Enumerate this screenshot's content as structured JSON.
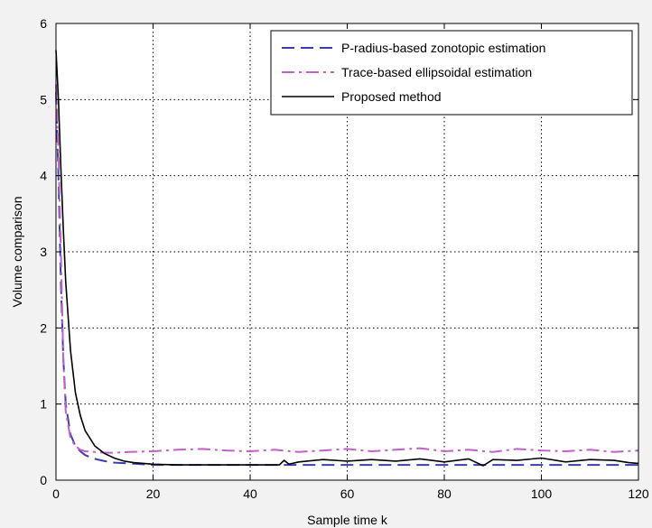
{
  "chart_data": {
    "type": "line",
    "title": "",
    "xlabel": "Sample time k",
    "ylabel": "Volume comparison",
    "xlim": [
      0,
      120
    ],
    "ylim": [
      0,
      6
    ],
    "x_ticks": [
      0,
      20,
      40,
      60,
      80,
      100,
      120
    ],
    "y_ticks": [
      0,
      1,
      2,
      3,
      4,
      5,
      6
    ],
    "grid": true,
    "legend_position": "top-right",
    "series": [
      {
        "name": "P-radius-based zonotopic estimation",
        "color": "#3b3fae",
        "style": "dashed",
        "x": [
          0,
          0.5,
          1,
          1.5,
          2,
          3,
          4,
          5,
          6,
          8,
          10,
          12,
          15,
          20,
          30,
          40,
          50,
          60,
          70,
          80,
          90,
          100,
          110,
          120
        ],
        "y": [
          5.1,
          4.0,
          2.6,
          1.6,
          1.0,
          0.6,
          0.45,
          0.38,
          0.33,
          0.28,
          0.25,
          0.23,
          0.22,
          0.2,
          0.2,
          0.2,
          0.2,
          0.2,
          0.2,
          0.2,
          0.2,
          0.2,
          0.2,
          0.2
        ]
      },
      {
        "name": "Trace-based ellipsoidal estimation",
        "color": "#c060c8",
        "style": "dashdot",
        "x": [
          0,
          0.5,
          1,
          1.5,
          2,
          3,
          4,
          5,
          6,
          8,
          10,
          12,
          15,
          20,
          25,
          30,
          35,
          40,
          45,
          50,
          55,
          60,
          65,
          70,
          75,
          80,
          85,
          90,
          95,
          100,
          105,
          110,
          115,
          120
        ],
        "y": [
          5.2,
          4.3,
          3.0,
          1.6,
          0.9,
          0.55,
          0.45,
          0.4,
          0.38,
          0.37,
          0.36,
          0.36,
          0.37,
          0.38,
          0.4,
          0.41,
          0.39,
          0.38,
          0.4,
          0.37,
          0.39,
          0.41,
          0.38,
          0.4,
          0.42,
          0.38,
          0.4,
          0.37,
          0.41,
          0.39,
          0.38,
          0.4,
          0.37,
          0.39
        ]
      },
      {
        "name": "Proposed method",
        "color": "#000000",
        "style": "solid",
        "x": [
          0,
          0.5,
          1,
          1.5,
          2,
          3,
          4,
          5,
          6,
          8,
          10,
          12,
          14,
          16,
          18,
          20,
          25,
          30,
          40,
          46,
          47,
          48,
          50,
          55,
          60,
          65,
          70,
          75,
          80,
          85,
          88,
          90,
          95,
          100,
          105,
          110,
          115,
          118,
          120
        ],
        "y": [
          5.65,
          5.0,
          4.1,
          3.3,
          2.6,
          1.7,
          1.15,
          0.85,
          0.65,
          0.45,
          0.35,
          0.29,
          0.25,
          0.23,
          0.22,
          0.21,
          0.2,
          0.2,
          0.2,
          0.2,
          0.26,
          0.21,
          0.24,
          0.27,
          0.25,
          0.27,
          0.25,
          0.28,
          0.24,
          0.28,
          0.19,
          0.27,
          0.26,
          0.29,
          0.24,
          0.27,
          0.26,
          0.23,
          0.22
        ]
      }
    ]
  }
}
